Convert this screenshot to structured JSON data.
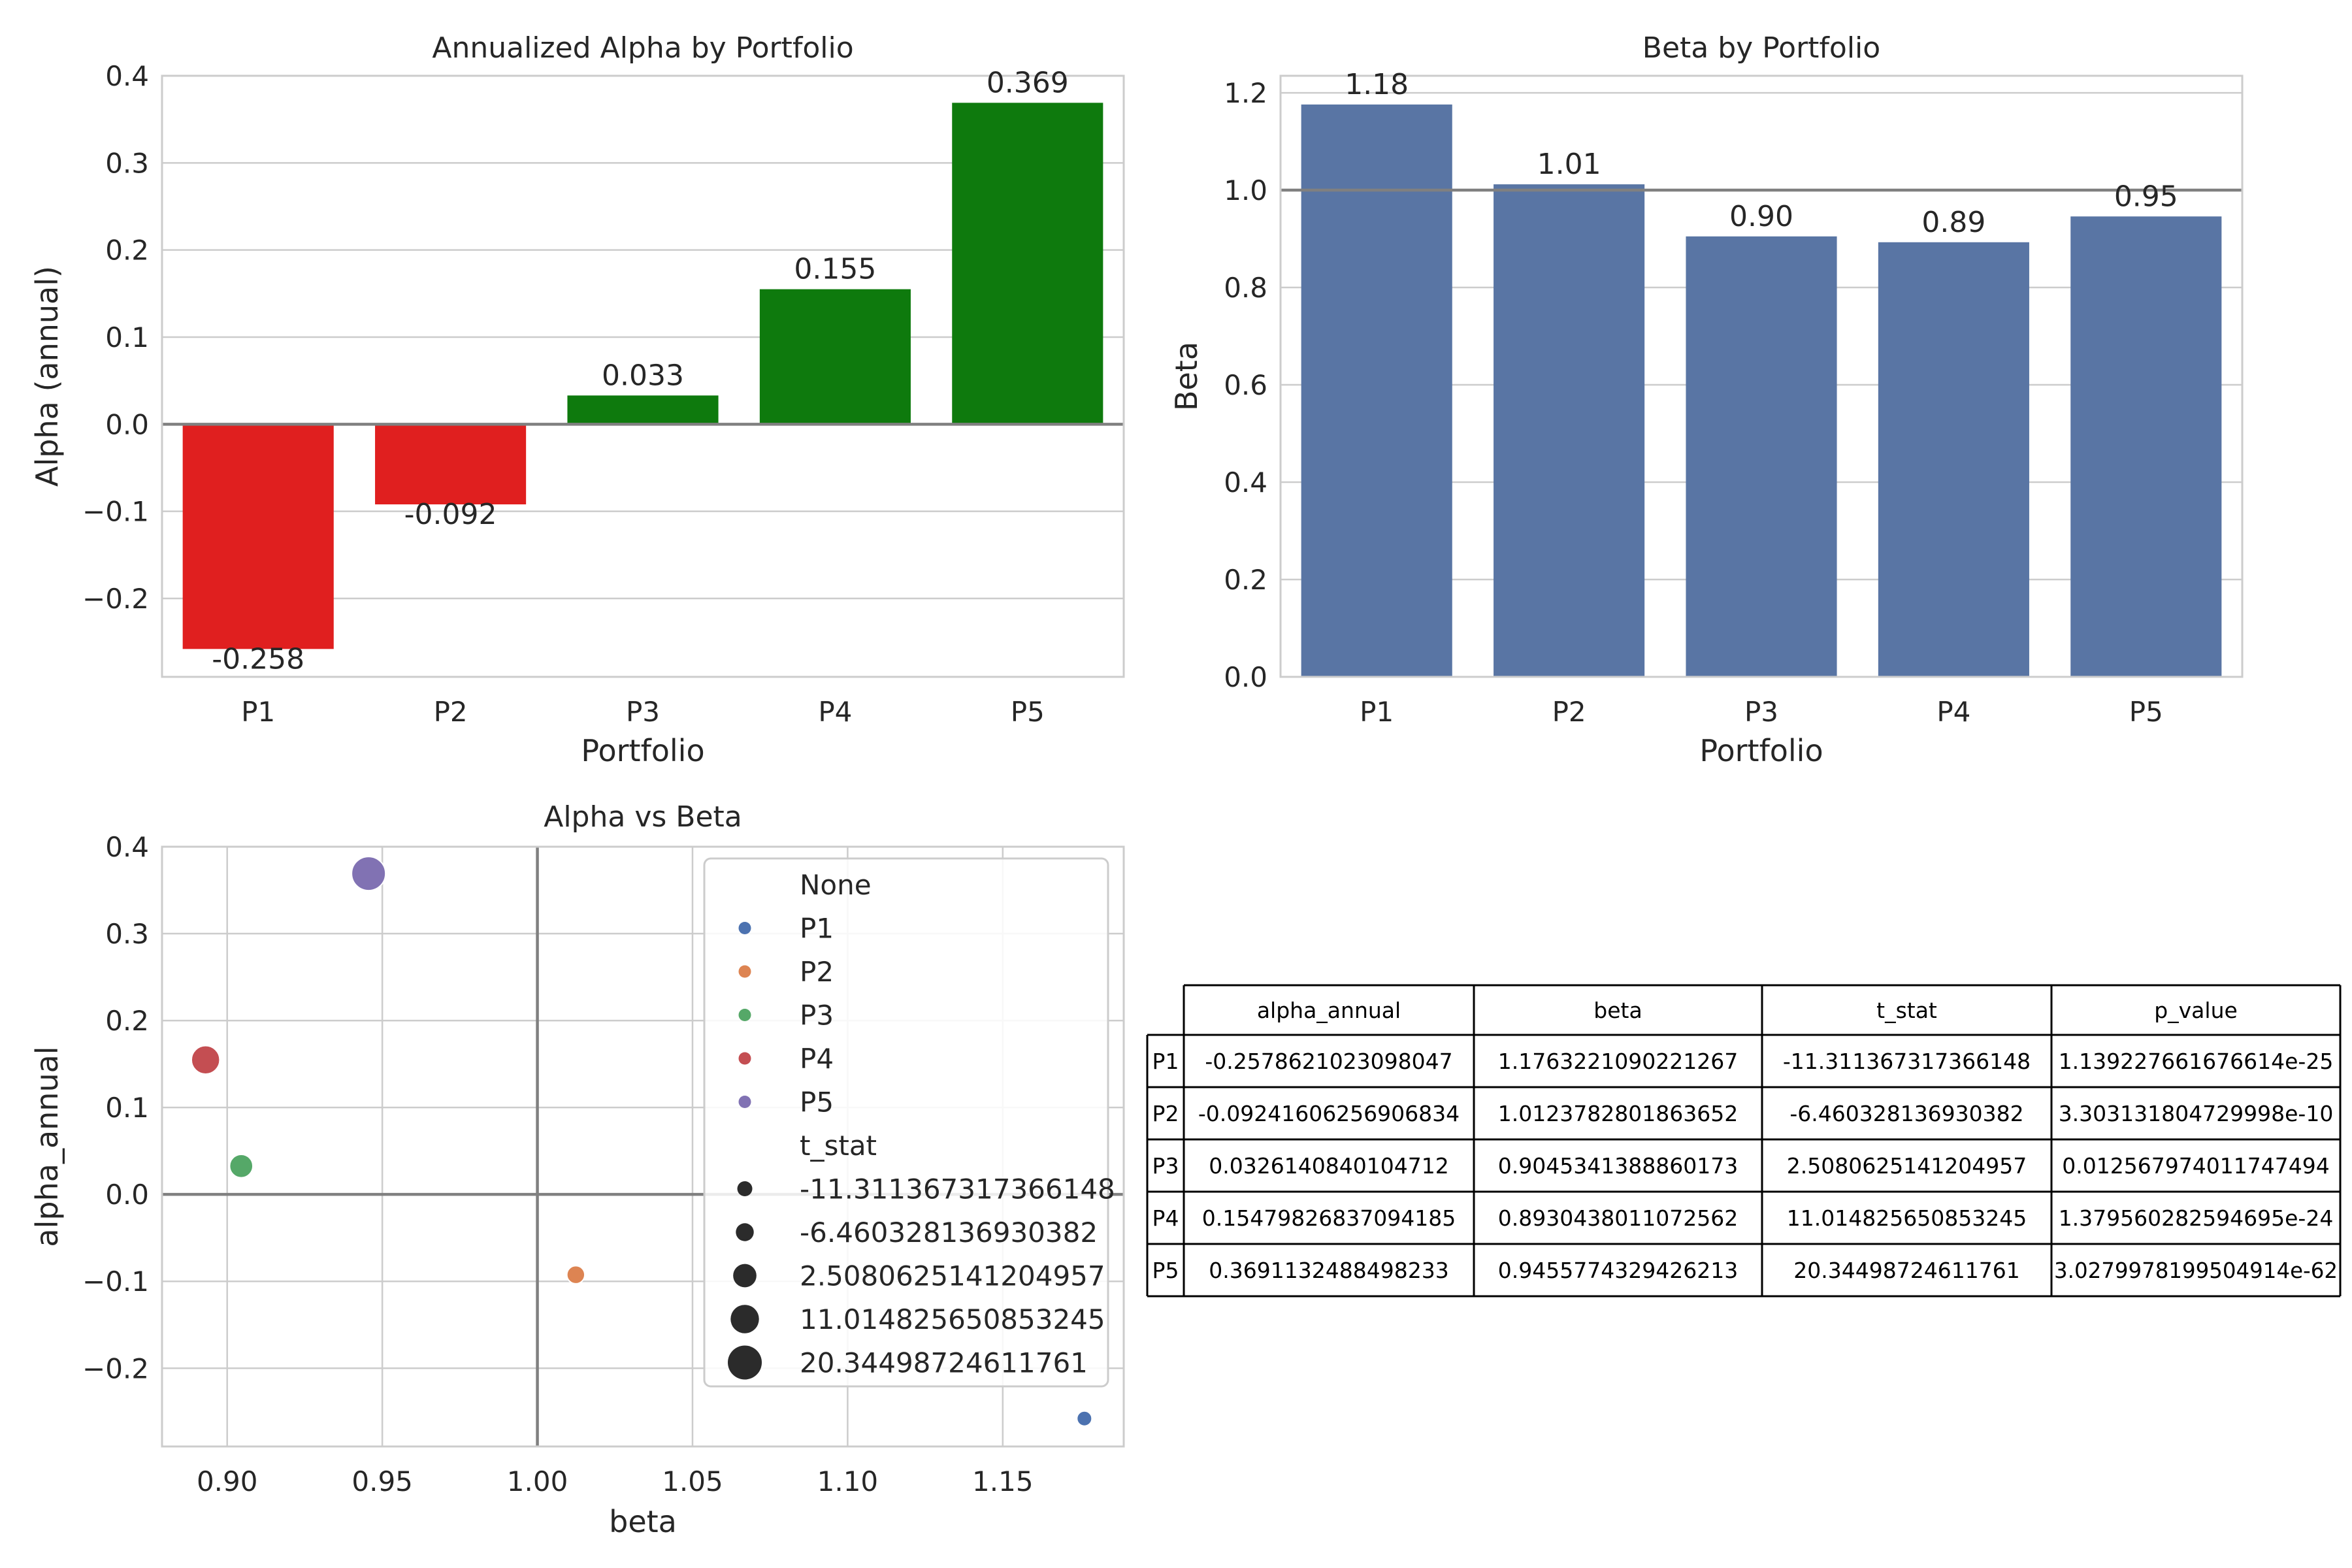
{
  "chart_data": [
    {
      "type": "bar",
      "title": "Annualized Alpha by Portfolio",
      "xlabel": "Portfolio",
      "ylabel": "Alpha (annual)",
      "categories": [
        "P1",
        "P2",
        "P3",
        "P4",
        "P5"
      ],
      "values": [
        -0.258,
        -0.092,
        0.033,
        0.155,
        0.369
      ],
      "data_labels": [
        "-0.258",
        "-0.092",
        "0.033",
        "0.155",
        "0.369"
      ],
      "ylim": [
        -0.29,
        0.4
      ],
      "yticks": [
        -0.2,
        -0.1,
        0.0,
        0.1,
        0.2,
        0.3,
        0.4
      ],
      "ytick_labels": [
        "−0.2",
        "−0.1",
        "0.0",
        "0.1",
        "0.2",
        "0.3",
        "0.4"
      ],
      "reference_line": 0.0,
      "colors": {
        "negative": "#e01f1f",
        "positive": "#0e7a0d"
      },
      "grid": true
    },
    {
      "type": "bar",
      "title": "Beta by Portfolio",
      "xlabel": "Portfolio",
      "ylabel": "Beta",
      "categories": [
        "P1",
        "P2",
        "P3",
        "P4",
        "P5"
      ],
      "values": [
        1.176,
        1.012,
        0.905,
        0.893,
        0.946
      ],
      "data_labels": [
        "1.18",
        "1.01",
        "0.90",
        "0.89",
        "0.95"
      ],
      "ylim": [
        0.0,
        1.235
      ],
      "yticks": [
        0.0,
        0.2,
        0.4,
        0.6,
        0.8,
        1.0,
        1.2
      ],
      "ytick_labels": [
        "0.0",
        "0.2",
        "0.4",
        "0.6",
        "0.8",
        "1.0",
        "1.2"
      ],
      "reference_line": 1.0,
      "colors": {
        "bar": "#5975a4"
      },
      "grid": true
    },
    {
      "type": "scatter",
      "title": "Alpha vs Beta",
      "xlabel": "beta",
      "ylabel": "alpha_annual",
      "xlim": [
        0.879,
        1.189
      ],
      "ylim": [
        -0.29,
        0.4
      ],
      "xticks": [
        0.9,
        0.95,
        1.0,
        1.05,
        1.1,
        1.15
      ],
      "xtick_labels": [
        "0.90",
        "0.95",
        "1.00",
        "1.05",
        "1.10",
        "1.15"
      ],
      "yticks": [
        -0.2,
        -0.1,
        0.0,
        0.1,
        0.2,
        0.3,
        0.4
      ],
      "ytick_labels": [
        "−0.2",
        "−0.1",
        "0.0",
        "0.1",
        "0.2",
        "0.3",
        "0.4"
      ],
      "reference_lines": {
        "x": 1.0,
        "y": 0.0
      },
      "points": [
        {
          "name": "P1",
          "x": 1.1763221090221267,
          "y": -0.2578621023098047,
          "t_stat": -11.311367317366148,
          "color": "#4c72b0"
        },
        {
          "name": "P2",
          "x": 1.0123782801863652,
          "y": -0.09241606256906834,
          "t_stat": -6.460328136930382,
          "color": "#dd8452"
        },
        {
          "name": "P3",
          "x": 0.9045341388860173,
          "y": 0.0326140840104712,
          "t_stat": 2.5080625141204957,
          "color": "#55a868"
        },
        {
          "name": "P4",
          "x": 0.8930438011072562,
          "y": 0.15479826837094185,
          "t_stat": 11.014825650853245,
          "color": "#c44e52"
        },
        {
          "name": "P5",
          "x": 0.9455774329426213,
          "y": 0.3691132488498233,
          "t_stat": 20.34498724611761,
          "color": "#8172b3"
        }
      ],
      "legend": {
        "placement": "upper right",
        "hue_title": "None",
        "hue_entries": [
          "P1",
          "P2",
          "P3",
          "P4",
          "P5"
        ],
        "size_title": "t_stat",
        "size_entries": [
          "-11.311367317366148",
          "-6.460328136930382",
          "2.5080625141204957",
          "11.014825650853245",
          "20.34498724611761"
        ]
      },
      "grid": true
    },
    {
      "type": "table",
      "columns": [
        "alpha_annual",
        "beta",
        "t_stat",
        "p_value"
      ],
      "rows": [
        {
          "label": "P1",
          "cells": [
            "-0.2578621023098047",
            "1.1763221090221267",
            "-11.311367317366148",
            "1.139227661676614e-25"
          ]
        },
        {
          "label": "P2",
          "cells": [
            "-0.09241606256906834",
            "1.0123782801863652",
            "-6.460328136930382",
            "3.303131804729998e-10"
          ]
        },
        {
          "label": "P3",
          "cells": [
            "0.0326140840104712",
            "0.9045341388860173",
            "2.5080625141204957",
            "0.012567974011747494"
          ]
        },
        {
          "label": "P4",
          "cells": [
            "0.15479826837094185",
            "0.8930438011072562",
            "11.014825650853245",
            "1.379560282594695e-24"
          ]
        },
        {
          "label": "P5",
          "cells": [
            "0.3691132488498233",
            "0.9455774329426213",
            "20.34498724611761",
            "3.0279978199504914e-62"
          ]
        }
      ]
    }
  ]
}
